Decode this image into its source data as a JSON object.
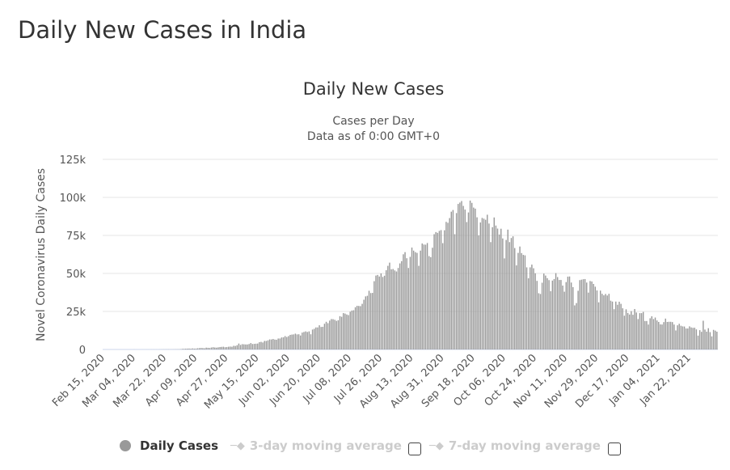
{
  "page_title": "Daily New Cases in India",
  "chart_data": {
    "type": "bar",
    "title": "Daily New Cases",
    "subtitle": [
      "Cases per Day",
      "Data as of 0:00 GMT+0"
    ],
    "ylabel": "Novel Coronavirus Daily Cases",
    "xlabel": "",
    "ylim": [
      0,
      125000
    ],
    "yticks": [
      0,
      25000,
      50000,
      75000,
      100000,
      125000
    ],
    "ytick_labels": [
      "0",
      "25k",
      "50k",
      "75k",
      "100k",
      "125k"
    ],
    "x_start": "2020-02-15",
    "x_interval_days": 1,
    "xtick_labels": [
      "Feb 15, 2020",
      "Mar 04, 2020",
      "Mar 22, 2020",
      "Apr 09, 2020",
      "Apr 27, 2020",
      "May 15, 2020",
      "Jun 02, 2020",
      "Jun 20, 2020",
      "Jul 08, 2020",
      "Jul 26, 2020",
      "Aug 13, 2020",
      "Aug 31, 2020",
      "Sep 18, 2020",
      "Oct 06, 2020",
      "Oct 24, 2020",
      "Nov 11, 2020",
      "Nov 29, 2020",
      "Dec 17, 2020",
      "Jan 04, 2021",
      "Jan 22, 2021"
    ],
    "grid": true,
    "bar_color": "#999999",
    "series": [
      {
        "name": "Daily Cases",
        "values": [
          0,
          0,
          0,
          0,
          0,
          0,
          0,
          0,
          0,
          0,
          0,
          0,
          0,
          0,
          0,
          0,
          2,
          1,
          22,
          3,
          1,
          2,
          5,
          9,
          5,
          15,
          10,
          12,
          13,
          20,
          10,
          22,
          25,
          40,
          60,
          80,
          70,
          90,
          100,
          70,
          80,
          90,
          120,
          130,
          150,
          200,
          400,
          450,
          500,
          550,
          600,
          500,
          700,
          550,
          600,
          800,
          900,
          1000,
          900,
          800,
          1200,
          1100,
          1000,
          1300,
          1500,
          1300,
          1200,
          1400,
          1600,
          1700,
          1800,
          1500,
          1600,
          1800,
          1900,
          1800,
          2400,
          2300,
          2800,
          3900,
          3000,
          3500,
          3400,
          3300,
          3300,
          3600,
          4200,
          3600,
          3700,
          3800,
          3900,
          4800,
          5000,
          4600,
          5600,
          5600,
          6000,
          6600,
          6600,
          6900,
          6500,
          6400,
          7200,
          7200,
          7900,
          8000,
          8800,
          8200,
          8800,
          9600,
          9800,
          9900,
          10400,
          9900,
          10000,
          9200,
          11100,
          11500,
          11900,
          11500,
          11900,
          10000,
          13100,
          13600,
          14500,
          14500,
          15900,
          14800,
          14900,
          16900,
          18200,
          17300,
          19000,
          20000,
          19900,
          19500,
          18800,
          19200,
          21900,
          21500,
          23900,
          23600,
          23000,
          22600,
          24800,
          25600,
          25800,
          27800,
          28700,
          28600,
          28500,
          30000,
          32700,
          34900,
          35300,
          38600,
          37100,
          37200,
          44900,
          48600,
          49000,
          48000,
          50000,
          47700,
          48500,
          52100,
          55000,
          57100,
          52700,
          52900,
          52000,
          51300,
          53600,
          56600,
          58100,
          62600,
          64000,
          60000,
          53600,
          60900,
          67000,
          65000,
          64000,
          63500,
          55000,
          65000,
          69700,
          69000,
          68900,
          70000,
          61400,
          60700,
          66900,
          75800,
          77200,
          76700,
          78000,
          78500,
          69900,
          78400,
          83900,
          83300,
          86400,
          90600,
          91700,
          75800,
          89700,
          95700,
          96600,
          97600,
          94400,
          92000,
          83800,
          90100,
          97900,
          96400,
          93300,
          92600,
          86900,
          75000,
          83500,
          86500,
          86000,
          85300,
          88600,
          82800,
          70600,
          80400,
          86800,
          81500,
          79500,
          75600,
          79400,
          73000,
          59900,
          72000,
          78800,
          70600,
          73300,
          74400,
          66700,
          55300,
          63500,
          67700,
          63400,
          62200,
          61900,
          54000,
          46800,
          54000,
          55800,
          53400,
          50100,
          45100,
          37000,
          36500,
          43900,
          49900,
          48600,
          46900,
          45600,
          38300,
          45300,
          46300,
          50200,
          47600,
          45700,
          45700,
          42000,
          38000,
          44300,
          47900,
          48000,
          44000,
          41000,
          29000,
          30500,
          38600,
          45600,
          45900,
          46200,
          46300,
          44000,
          37400,
          45000,
          44700,
          43100,
          41300,
          38800,
          31000,
          38700,
          36600,
          35600,
          36500,
          35500,
          36600,
          32100,
          31500,
          26500,
          31500,
          29400,
          31400,
          30000,
          27100,
          22200,
          26400,
          24000,
          23000,
          25200,
          22800,
          26600,
          24300,
          20000,
          23900,
          23900,
          24700,
          18700,
          18700,
          16400,
          20500,
          21800,
          20000,
          21000,
          19100,
          18100,
          16500,
          16400,
          18000,
          20300,
          18100,
          18200,
          18200,
          18000,
          16400,
          12500,
          15900,
          16900,
          15600,
          15200,
          15100,
          13800,
          13800,
          15200,
          14500,
          14200,
          14300,
          13200,
          9100,
          12700,
          11600,
          18900,
          13100,
          11700,
          14000,
          11400,
          8600,
          12900,
          12400,
          11700
        ]
      }
    ],
    "legend": {
      "placement": "bottom",
      "items": [
        {
          "label": "Daily Cases",
          "active": true,
          "color": "#999999"
        },
        {
          "label": "3-day moving average",
          "active": false,
          "color": "#cccccc"
        },
        {
          "label": "7-day moving average",
          "active": false,
          "color": "#cccccc"
        }
      ]
    }
  }
}
